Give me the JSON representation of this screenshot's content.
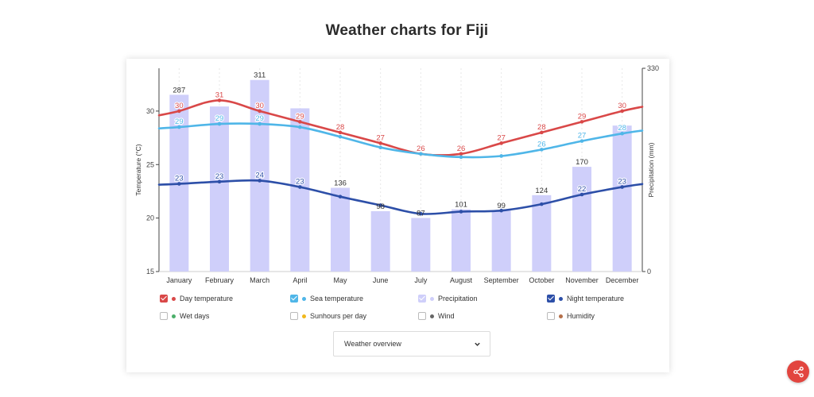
{
  "page": {
    "title": "Weather charts for Fiji"
  },
  "chart_data": {
    "type": "bar+line",
    "categories": [
      "January",
      "February",
      "March",
      "April",
      "May",
      "June",
      "July",
      "August",
      "September",
      "October",
      "November",
      "December"
    ],
    "y_left": {
      "label": "Temperature (°C)",
      "ticks": [
        15,
        20,
        25,
        30
      ],
      "range": [
        15,
        34
      ]
    },
    "y_right": {
      "label": "Precipitation (mm)",
      "ticks": [
        0,
        330
      ],
      "range": [
        0,
        330
      ]
    },
    "bars": {
      "name": "Precipitation",
      "color": "#cfcffa",
      "values": [
        287,
        268,
        311,
        265,
        136,
        98,
        87,
        101,
        99,
        124,
        170,
        237
      ],
      "labels": [
        "287",
        "",
        "311",
        "",
        "136",
        "98",
        "87",
        "101",
        "99",
        "124",
        "170",
        ""
      ]
    },
    "series": [
      {
        "name": "Day temperature",
        "color": "#d94848",
        "values": [
          30,
          31,
          30,
          29,
          28,
          27,
          26,
          26,
          27,
          28,
          29,
          30
        ],
        "labels": [
          "30",
          "31",
          "30",
          "29",
          "28",
          "27",
          "26",
          "26",
          "27",
          "28",
          "29",
          "30"
        ]
      },
      {
        "name": "Sea temperature",
        "color": "#4fb6e8",
        "values": [
          28.5,
          28.8,
          28.8,
          28.5,
          27.6,
          26.6,
          26,
          25.7,
          25.8,
          26.4,
          27.2,
          27.9
        ],
        "labels": [
          "29",
          "29",
          "29",
          "",
          "",
          "",
          "",
          "",
          "",
          "26",
          "27",
          "28"
        ]
      },
      {
        "name": "Night temperature",
        "color": "#2d4fa8",
        "values": [
          23.2,
          23.4,
          23.5,
          22.9,
          22,
          21.2,
          20.4,
          20.6,
          20.7,
          21.3,
          22.2,
          22.9
        ],
        "labels": [
          "23",
          "23",
          "24",
          "23",
          "",
          "",
          "",
          "",
          "",
          "",
          "22",
          "23"
        ]
      }
    ]
  },
  "legend": {
    "items": [
      {
        "label": "Day temperature",
        "color": "#d94848",
        "checked": true
      },
      {
        "label": "Sea temperature",
        "color": "#4fb6e8",
        "checked": true
      },
      {
        "label": "Precipitation",
        "color": "#cfcffa",
        "checked": true
      },
      {
        "label": "Night temperature",
        "color": "#2d4fa8",
        "checked": true
      },
      {
        "label": "Wet days",
        "color": "#4caf6a",
        "checked": false
      },
      {
        "label": "Sunhours per day",
        "color": "#f1b81c",
        "checked": false
      },
      {
        "label": "Wind",
        "color": "#666666",
        "checked": false
      },
      {
        "label": "Humidity",
        "color": "#b5704a",
        "checked": false
      }
    ]
  },
  "dropdown": {
    "value": "Weather overview"
  },
  "colors": {
    "share": "#e2453f",
    "checkbox_checked_day": "#d94848",
    "checkbox_checked_sea": "#4fb6e8",
    "checkbox_checked_precip": "#cfcffa",
    "checkbox_checked_night": "#2d4fa8"
  },
  "icons": {
    "share": "share-icon",
    "dropdown": "chevron-down-icon"
  }
}
